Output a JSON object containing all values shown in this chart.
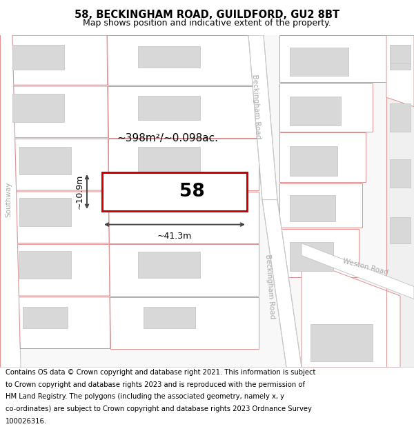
{
  "title_line1": "58, BECKINGHAM ROAD, GUILDFORD, GU2 8BT",
  "title_line2": "Map shows position and indicative extent of the property.",
  "footer_text": "Contains OS data © Crown copyright and database right 2021. This information is subject to Crown copyright and database rights 2023 and is reproduced with the permission of HM Land Registry. The polygons (including the associated geometry, namely x, y co-ordinates) are subject to Crown copyright and database rights 2023 Ordnance Survey 100026316.",
  "bg_color": "#ffffff",
  "road_label_1": "Beckingham Road",
  "road_label_2": "Beckingham Road",
  "road_label_3": "Southway",
  "road_label_4": "Weston Road",
  "area_label": "~398m²/~0.098ac.",
  "width_label": "~41.3m",
  "height_label": "~10.9m",
  "label_58": "58",
  "title_fontsize": 10.5,
  "subtitle_fontsize": 9,
  "footer_fontsize": 7.2
}
